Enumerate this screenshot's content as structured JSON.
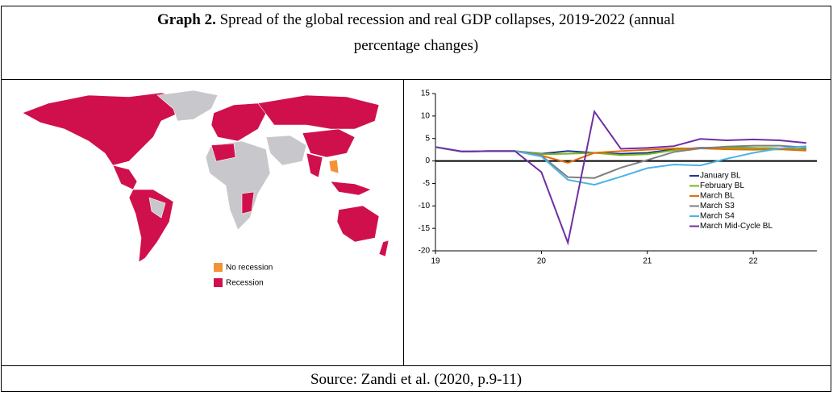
{
  "title": {
    "label": "Graph 2.",
    "text": "Spread of the global recession and real GDP collapses, 2019-2022 (annual percentage changes)"
  },
  "map": {
    "legend": [
      {
        "name": "No recession",
        "color": "#f39237"
      },
      {
        "name": "Recession",
        "color": "#d0104c"
      }
    ]
  },
  "chart_data": {
    "type": "line",
    "x": [
      19,
      19.25,
      19.5,
      19.75,
      20,
      20.25,
      20.5,
      20.75,
      21,
      21.25,
      21.5,
      21.75,
      22,
      22.25,
      22.5
    ],
    "xlim": [
      19,
      22.6
    ],
    "xticks": [
      19,
      20,
      21,
      22
    ],
    "ylim": [
      -20,
      15
    ],
    "yticks": [
      15,
      10,
      5,
      0,
      -5,
      -10,
      -15,
      -20
    ],
    "legend": "lower right",
    "series": [
      {
        "name": "January BL",
        "color": "#1f3a93",
        "values": [
          3.1,
          2.1,
          2.2,
          2.2,
          1.6,
          2.2,
          1.8,
          1.6,
          1.8,
          2.6,
          2.9,
          3.0,
          2.9,
          2.8,
          2.6
        ]
      },
      {
        "name": "February BL",
        "color": "#7cb518",
        "values": [
          3.1,
          2.1,
          2.2,
          2.2,
          1.5,
          1.6,
          1.8,
          1.3,
          1.5,
          2.4,
          2.8,
          2.9,
          2.9,
          2.8,
          2.5
        ]
      },
      {
        "name": "March BL",
        "color": "#e36c09",
        "values": [
          3.1,
          2.1,
          2.2,
          2.2,
          1.2,
          -0.4,
          1.8,
          2.2,
          2.5,
          2.8,
          2.8,
          2.6,
          2.5,
          2.6,
          2.3
        ]
      },
      {
        "name": "March S3",
        "color": "#7f7f7f",
        "values": [
          3.1,
          2.1,
          2.2,
          2.2,
          1.2,
          -3.6,
          -3.8,
          -1.5,
          0.2,
          2.0,
          2.8,
          3.2,
          3.4,
          3.4,
          3.0
        ]
      },
      {
        "name": "March S4",
        "color": "#4bb3e6",
        "values": [
          3.1,
          2.1,
          2.2,
          2.2,
          1.0,
          -4.2,
          -5.3,
          -3.5,
          -1.6,
          -0.8,
          -1.0,
          0.5,
          1.8,
          2.8,
          3.3
        ]
      },
      {
        "name": "March Mid-Cycle BL",
        "color": "#7030a0",
        "values": [
          3.1,
          2.1,
          2.2,
          2.2,
          -2.5,
          -18.2,
          11.0,
          2.7,
          2.9,
          3.3,
          4.9,
          4.6,
          4.8,
          4.6,
          4.0
        ]
      }
    ]
  },
  "source": "Source: Zandi et al. (2020, p.9-11)"
}
